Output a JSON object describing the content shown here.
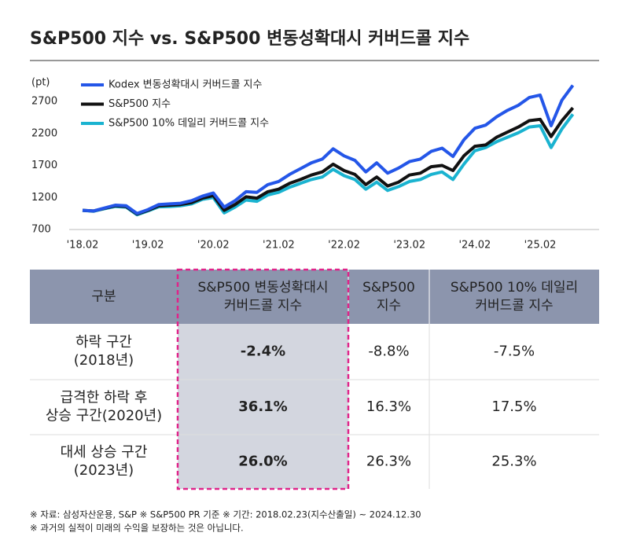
{
  "chart_data": {
    "type": "line",
    "title": "S&P500 지수 vs. S&P500 변동성확대시 커버드콜 지수",
    "y_unit": "(pt)",
    "categories": [
      "'18.02",
      null,
      null,
      null,
      null,
      null,
      "'19.02",
      null,
      null,
      null,
      null,
      null,
      "'20.02",
      null,
      null,
      null,
      null,
      null,
      "'21.02",
      null,
      null,
      null,
      null,
      null,
      "'22.02",
      null,
      null,
      null,
      null,
      null,
      "'23.02",
      null,
      null,
      null,
      null,
      null,
      "'24.02",
      null,
      null,
      null,
      null,
      null,
      "'25.02",
      null,
      null,
      null
    ],
    "series": [
      {
        "name": "Kodex 변동성확대시 커버드콜 지수",
        "color": "#2456e8",
        "values": [
          1000,
          990,
          1035,
          1080,
          1070,
          950,
          1010,
          1090,
          1100,
          1110,
          1150,
          1220,
          1270,
          1050,
          1150,
          1290,
          1280,
          1400,
          1450,
          1560,
          1650,
          1740,
          1800,
          1960,
          1850,
          1780,
          1600,
          1740,
          1580,
          1660,
          1760,
          1800,
          1920,
          1970,
          1840,
          2100,
          2280,
          2330,
          2460,
          2560,
          2640,
          2760,
          2800,
          2320,
          2720,
          2950
        ]
      },
      {
        "name": "S&P500 지수",
        "color": "#111111",
        "values": [
          1000,
          990,
          1030,
          1070,
          1060,
          940,
          1000,
          1070,
          1080,
          1090,
          1120,
          1190,
          1230,
          1000,
          1090,
          1210,
          1190,
          1290,
          1330,
          1420,
          1480,
          1550,
          1600,
          1720,
          1620,
          1560,
          1400,
          1520,
          1380,
          1440,
          1550,
          1580,
          1680,
          1700,
          1620,
          1850,
          2000,
          2020,
          2140,
          2220,
          2300,
          2400,
          2420,
          2150,
          2400,
          2600
        ]
      },
      {
        "name": "S&P500 10% 데일리 커버드콜 지수",
        "color": "#1ab3d0",
        "values": [
          1000,
          985,
          1025,
          1060,
          1050,
          930,
          990,
          1055,
          1060,
          1070,
          1100,
          1170,
          1200,
          960,
          1050,
          1160,
          1140,
          1240,
          1280,
          1360,
          1420,
          1480,
          1520,
          1640,
          1540,
          1480,
          1330,
          1440,
          1310,
          1370,
          1450,
          1480,
          1560,
          1600,
          1480,
          1720,
          1930,
          1980,
          2070,
          2140,
          2210,
          2300,
          2320,
          1980,
          2270,
          2500
        ]
      }
    ],
    "ylim": [
      700,
      3000
    ],
    "yticks": [
      700,
      1200,
      1700,
      2200,
      2700
    ],
    "legend": "upper left"
  },
  "table": {
    "header": [
      [
        "구분"
      ],
      [
        "S&P500 변동성확대시",
        "커버드콜 지수"
      ],
      [
        "S&P500",
        "지수"
      ],
      [
        "S&P500 10% 데일리",
        "커버드콜 지수"
      ]
    ],
    "rows": [
      [
        [
          "하락 구간",
          "(2018년)"
        ],
        [
          "-2.4%"
        ],
        [
          "-8.8%"
        ],
        [
          "-7.5%"
        ]
      ],
      [
        [
          "급격한 하락 후",
          "상승 구간(2020년)"
        ],
        [
          "36.1%"
        ],
        [
          "16.3%"
        ],
        [
          "17.5%"
        ]
      ],
      [
        [
          "대세 상승 구간",
          "(2023년)"
        ],
        [
          "26.0%"
        ],
        [
          "26.3%"
        ],
        [
          "25.3%"
        ]
      ]
    ]
  },
  "notes": [
    "※ 자료: 삼성자산운용, S&P ※ S&P500 PR 기준 ※ 기간: 2018.02.23(지수산출일) ~ 2024.12.30",
    "※ 과거의 실적이 미래의 수익을 보장하는 것은 아닙니다."
  ]
}
